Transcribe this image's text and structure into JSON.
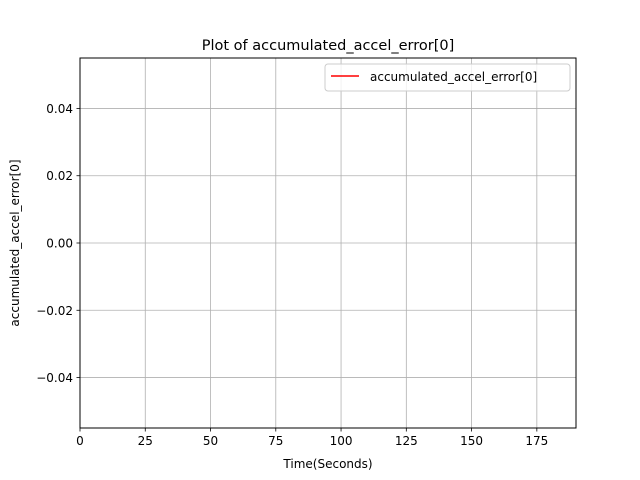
{
  "chart_data": {
    "type": "line",
    "title": "Plot of accumulated_accel_error[0]",
    "xlabel": "Time(Seconds)",
    "ylabel": "accumulated_accel_error[0]",
    "xlim": [
      0,
      190
    ],
    "ylim": [
      -0.055,
      0.055
    ],
    "xticks": [
      0,
      25,
      50,
      75,
      100,
      125,
      150,
      175
    ],
    "xtick_labels": [
      "0",
      "25",
      "50",
      "75",
      "100",
      "125",
      "150",
      "175"
    ],
    "yticks": [
      -0.04,
      -0.02,
      0.0,
      0.02,
      0.04
    ],
    "ytick_labels": [
      "−0.04",
      "−0.02",
      "0.00",
      "0.02",
      "0.04"
    ],
    "grid": true,
    "legend_position": "top-right",
    "series": [
      {
        "name": "accumulated_accel_error[0]",
        "color": "#ff0000",
        "x": [],
        "y": []
      }
    ]
  }
}
